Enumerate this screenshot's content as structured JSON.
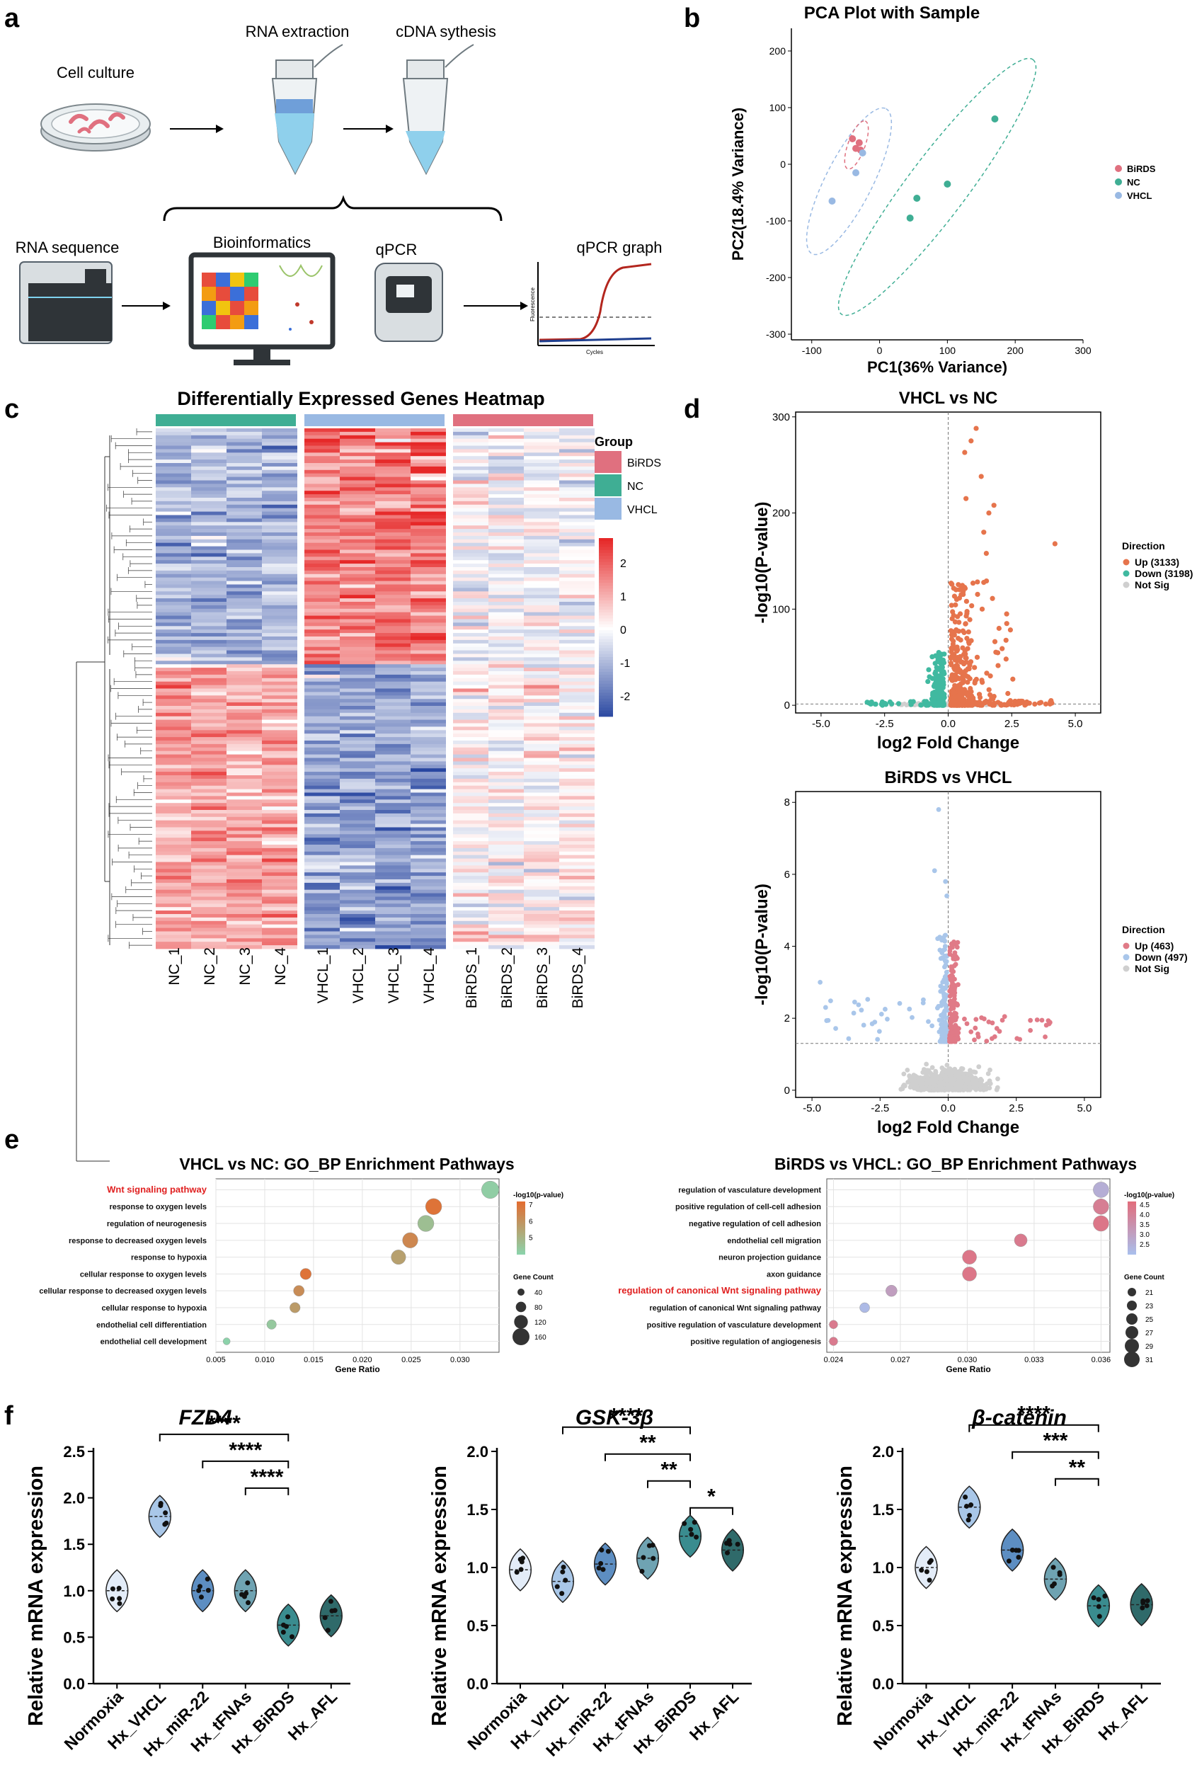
{
  "panel_labels": {
    "a": "a",
    "b": "b",
    "c": "c",
    "d": "d",
    "e": "e",
    "f": "f"
  },
  "workflow": {
    "cell_culture": "Cell culture",
    "rna_extraction": "RNA extraction",
    "cdna": "cDNA sythesis",
    "rna_sequence": "RNA sequence",
    "bioinformatics": "Bioinformatics",
    "qpcr": "qPCR",
    "qpcr_graph": "qPCR graph",
    "fluorescence": "Fluorescence",
    "cycles": "Cycles"
  },
  "colors": {
    "birds": "#e0707f",
    "nc": "#3fae94",
    "vhcl": "#99b9e3",
    "up": "#e6744c",
    "down": "#40b9a0",
    "notsig": "#cfcfcf",
    "up2": "#e07a87",
    "down2": "#a9c6ea"
  },
  "chart_data": [
    {
      "type": "scatter",
      "id": "pca",
      "title": "PCA Plot with Sample",
      "xlabel": "PC1(36% Variance)",
      "ylabel": "PC2(18.4% Variance)",
      "xlim": [
        -130,
        300
      ],
      "ylim": [
        -310,
        240
      ],
      "xticks": [
        "-100",
        "0",
        "100",
        "200",
        "300"
      ],
      "yticks": [
        "200",
        "100",
        "0",
        "-100",
        "-200",
        "-300"
      ],
      "legend": [
        {
          "name": "BiRDS"
        },
        {
          "name": "NC"
        },
        {
          "name": "VHCL"
        }
      ],
      "series": [
        {
          "name": "BiRDS",
          "points": [
            [
              -40,
              45
            ],
            [
              -35,
              28
            ],
            [
              -30,
              38
            ],
            [
              -28,
              25
            ]
          ]
        },
        {
          "name": "NC",
          "points": [
            [
              170,
              80
            ],
            [
              100,
              -35
            ],
            [
              55,
              -60
            ],
            [
              45,
              -95
            ]
          ]
        },
        {
          "name": "VHCL",
          "points": [
            [
              -25,
              20
            ],
            [
              -35,
              -15
            ],
            [
              -70,
              -65
            ]
          ]
        }
      ]
    },
    {
      "type": "heatmap",
      "id": "heatmap",
      "title": "Differentially Expressed Genes Heatmap",
      "columns": [
        "NC_1",
        "NC_2",
        "NC_3",
        "NC_4",
        "VHCL_1",
        "VHCL_2",
        "VHCL_3",
        "VHCL_4",
        "BiRDS_1",
        "BiRDS_2",
        "BiRDS_3",
        "BiRDS_4"
      ],
      "groups": [
        "NC",
        "VHCL",
        "BiRDS"
      ],
      "legend_title": "Group",
      "legend": [
        "BiRDS",
        "NC",
        "VHCL"
      ],
      "scale": [
        -2,
        2
      ],
      "scale_ticks": [
        "2",
        "1",
        "0",
        "-1",
        "-2"
      ]
    },
    {
      "type": "scatter",
      "id": "volcano1",
      "title": "VHCL vs NC",
      "xlabel": "log2 Fold Change",
      "ylabel": "-log10(P-value)",
      "xlim": [
        -6,
        6
      ],
      "ylim": [
        -8,
        305
      ],
      "xticks": [
        "-5.0",
        "-2.5",
        "0.0",
        "2.5",
        "5.0"
      ],
      "yticks": [
        "300",
        "200",
        "100",
        "0"
      ],
      "legend_title": "Direction",
      "legend": [
        "Up (3133)",
        "Down (3198)",
        "Not Sig"
      ]
    },
    {
      "type": "scatter",
      "id": "volcano2",
      "title": "BiRDS vs VHCL",
      "xlabel": "log2 Fold Change",
      "ylabel": "-log10(P-value)",
      "xlim": [
        -5.6,
        5.6
      ],
      "ylim": [
        -0.2,
        8.3
      ],
      "xticks": [
        "-5.0",
        "-2.5",
        "0.0",
        "2.5",
        "5.0"
      ],
      "yticks": [
        "8",
        "6",
        "4",
        "2",
        "0"
      ],
      "legend_title": "Direction",
      "legend": [
        "Up (463)",
        "Down (497)",
        "Not Sig"
      ]
    },
    {
      "type": "scatter",
      "id": "go1",
      "title": "VHCL vs NC: GO_BP Enrichment Pathways",
      "xlabel": "Gene Ratio",
      "xlim": [
        0.005,
        0.034
      ],
      "xticks": [
        "0.005",
        "0.010",
        "0.015",
        "0.020",
        "0.025",
        "0.030"
      ],
      "terms": [
        "Wnt signaling pathway",
        "response to oxygen levels",
        "regulation of neurogenesis",
        "response to decreased oxygen levels",
        "response to hypoxia",
        "cellular response to oxygen levels",
        "cellular response to decreased oxygen levels",
        "cellular response to hypoxia",
        "endothelial cell differentiation",
        "endothelial cell development"
      ],
      "ratio": [
        0.0331,
        0.0273,
        0.0265,
        0.0249,
        0.0237,
        0.0142,
        0.0135,
        0.0131,
        0.0107,
        0.0061
      ],
      "count": [
        165,
        150,
        150,
        140,
        130,
        90,
        85,
        80,
        70,
        40
      ],
      "color_title": "-log10(p-value)",
      "color_ticks": [
        "7",
        "6",
        "5"
      ],
      "size_title": "Gene Count",
      "size_ticks": [
        "40",
        "80",
        "120",
        "160"
      ]
    },
    {
      "type": "scatter",
      "id": "go2",
      "title": "BiRDS vs VHCL: GO_BP Enrichment Pathways",
      "xlabel": "Gene Ratio",
      "xlim": [
        0.0237,
        0.0364
      ],
      "xticks": [
        "0.024",
        "0.027",
        "0.030",
        "0.033",
        "0.036"
      ],
      "terms": [
        "regulation of vasculature development",
        "positive regulation of cell-cell adhesion",
        "negative regulation of cell adhesion",
        "endothelial cell migration",
        "neuron projection guidance",
        "axon guidance",
        "regulation of canonical Wnt signaling pathway",
        "regulation of canonical Wnt signaling pathway",
        "positive regulation of vasculature development",
        "positive regulation of angiogenesis"
      ],
      "ratio": [
        0.036,
        0.036,
        0.036,
        0.0324,
        0.0301,
        0.0301,
        0.0266,
        0.0254,
        0.024,
        0.024
      ],
      "count": [
        31,
        31,
        31,
        27,
        29,
        29,
        25,
        23,
        21,
        21
      ],
      "color_title": "-log10(p-value)",
      "color_ticks": [
        "4.5",
        "4.0",
        "3.5",
        "3.0",
        "2.5"
      ],
      "size_title": "Gene Count",
      "size_ticks": [
        "21",
        "23",
        "25",
        "27",
        "29",
        "31"
      ]
    },
    {
      "type": "bar",
      "id": "fzd4",
      "title": "FZD4",
      "ylabel": "Relative mRNA expression",
      "categories": [
        "Normoxia",
        "Hx_VHCL",
        "Hx_miR-22",
        "Hx_tFNAs",
        "Hx_BiRDS",
        "Hx_AFL"
      ],
      "values": [
        1.0,
        1.8,
        1.0,
        1.0,
        0.63,
        0.73
      ],
      "ylim": [
        0,
        2.5
      ],
      "yticks": [
        "0.0",
        "0.5",
        "1.0",
        "1.5",
        "2.0",
        "2.5"
      ],
      "sig": [
        {
          "a": 1,
          "b": 4,
          "label": "****"
        },
        {
          "a": 2,
          "b": 4,
          "label": "****"
        },
        {
          "a": 3,
          "b": 4,
          "label": "****"
        }
      ]
    },
    {
      "type": "bar",
      "id": "gsk",
      "title": "GSK-3β",
      "ylabel": "Relative mRNA expression",
      "categories": [
        "Normoxia",
        "Hx_VHCL",
        "Hx_miR-22",
        "Hx_tFNAs",
        "Hx_BiRDS",
        "Hx_AFL"
      ],
      "values": [
        0.98,
        0.88,
        1.03,
        1.08,
        1.27,
        1.15
      ],
      "ylim": [
        0,
        2.0
      ],
      "yticks": [
        "0.0",
        "0.5",
        "1.0",
        "1.5",
        "2.0"
      ],
      "sig": [
        {
          "a": 1,
          "b": 4,
          "label": "****"
        },
        {
          "a": 2,
          "b": 4,
          "label": "**"
        },
        {
          "a": 3,
          "b": 4,
          "label": "**"
        },
        {
          "a": 4,
          "b": 5,
          "label": "*"
        }
      ]
    },
    {
      "type": "bar",
      "id": "bcat",
      "title": "β-catenin",
      "ylabel": "Relative mRNA expression",
      "categories": [
        "Normoxia",
        "Hx_VHCL",
        "Hx_miR-22",
        "Hx_tFNAs",
        "Hx_BiRDS",
        "Hx_AFL"
      ],
      "values": [
        1.0,
        1.52,
        1.15,
        0.9,
        0.67,
        0.68
      ],
      "ylim": [
        0,
        2.0
      ],
      "yticks": [
        "0.0",
        "0.5",
        "1.0",
        "1.5",
        "2.0"
      ],
      "sig": [
        {
          "a": 1,
          "b": 4,
          "label": "****"
        },
        {
          "a": 2,
          "b": 4,
          "label": "***"
        },
        {
          "a": 3,
          "b": 4,
          "label": "**"
        }
      ]
    }
  ]
}
